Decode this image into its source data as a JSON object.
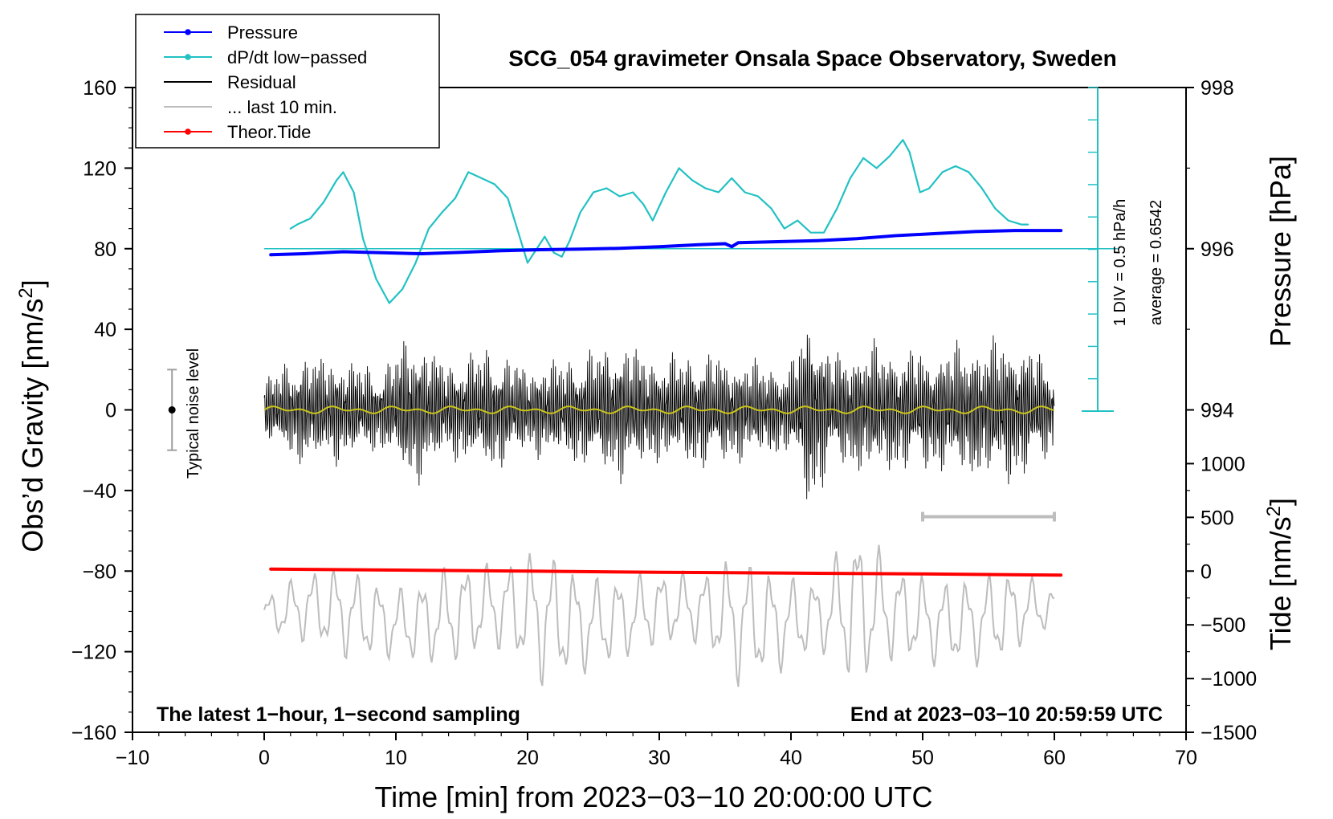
{
  "chart_data": {
    "type": "line",
    "title": "SCG_054 gravimeter Onsala Space Observatory, Sweden",
    "xlabel": "Time [min] from 2023−03−10 20:00:00 UTC",
    "ylabel_left": "Obs’d Gravity [nm/s",
    "ylabel_left_sup": "2",
    "ylabel_left_close": "]",
    "ylabel_right_pressure": "Pressure [hPa]",
    "ylabel_right_tide": "Tide [nm/s",
    "ylabel_right_tide_sup": "2",
    "ylabel_right_tide_close": "]",
    "xlim": [
      -10,
      70
    ],
    "ylim_left": [
      -160,
      160
    ],
    "xticks": [
      "−10",
      "0",
      "10",
      "20",
      "30",
      "40",
      "50",
      "60",
      "70"
    ],
    "xtick_values": [
      -10,
      0,
      10,
      20,
      30,
      40,
      50,
      60,
      70
    ],
    "yticks_left": [
      "160",
      "120",
      "80",
      "40",
      "0",
      "−40",
      "−80",
      "−120",
      "−160"
    ],
    "ytick_values_left": [
      160,
      120,
      80,
      40,
      0,
      -40,
      -80,
      -120,
      -160
    ],
    "pressure_ticks": [
      "998",
      "996",
      "994"
    ],
    "pressure_tick_values": [
      998,
      996,
      994
    ],
    "pressure_axis_map": {
      "hpa_at_80": 996,
      "nms2_per_hpa": 40
    },
    "tide_ticks": [
      "1000",
      "500",
      "0",
      "−500",
      "−1000",
      "−1500"
    ],
    "tide_tick_values": [
      1000,
      500,
      0,
      -500,
      -1000,
      -1500
    ],
    "tide_axis_map": {
      "tide_at_minus80": 0,
      "tide_units_per_nms2": 18.75
    },
    "pressure_scale_text": "1 DIV = 0.5 hPa/h",
    "pressure_average_text": "average = 0.6542",
    "pressure_reference_level": 80,
    "noise_label": "Typical noise level",
    "noise_bar": {
      "x": -7,
      "center": 0,
      "low": -20,
      "high": 20
    },
    "last_window_bar": {
      "x_start": 50,
      "x_end": 60,
      "y": -53
    },
    "bottom_left_note": "The latest 1−hour, 1−second sampling",
    "bottom_right_note": "End at 2023−03−10 20:59:59 UTC",
    "legend": [
      {
        "label": "Pressure",
        "color": "#0000ff",
        "style": "line-dot"
      },
      {
        "label": "dP/dt low−passed",
        "color": "#22c1c3",
        "style": "line-dot"
      },
      {
        "label": "Residual",
        "color": "#000000",
        "style": "line"
      },
      {
        "label": "... last 10 min.",
        "color": "#bdbdbd",
        "style": "line"
      },
      {
        "label": "Theor.Tide",
        "color": "#ff0000",
        "style": "line-dot"
      }
    ],
    "series": [
      {
        "name": "Pressure",
        "color": "#0000ff",
        "x": [
          0.5,
          3,
          6,
          9,
          12,
          15,
          18,
          21,
          24,
          27,
          30,
          33,
          35,
          35.5,
          36,
          39,
          42,
          45,
          48,
          51,
          54,
          57,
          60.5
        ],
        "values": [
          77,
          77.5,
          78.5,
          78,
          77.5,
          78.2,
          79,
          79.5,
          79.8,
          80.2,
          81,
          82,
          82.5,
          81,
          83,
          83.5,
          84,
          85,
          86.5,
          87.5,
          88.5,
          89,
          89
        ]
      },
      {
        "name": "dP/dt low−passed",
        "color": "#22c1c3",
        "x": [
          2,
          2.5,
          3.5,
          4.5,
          5.5,
          6,
          6.8,
          7.5,
          8.5,
          9.5,
          10.5,
          11.5,
          12.5,
          13.5,
          14.5,
          15.5,
          16.5,
          17.5,
          18.5,
          19.3,
          20,
          20.5,
          21.3,
          22,
          22.6,
          23.2,
          24,
          25,
          26,
          27,
          28,
          28.8,
          29.5,
          30.5,
          31.5,
          32.5,
          33.5,
          34.5,
          35.5,
          36.5,
          37.5,
          38.5,
          39.5,
          40.5,
          41.5,
          42.5,
          43.5,
          44.5,
          45.5,
          46.5,
          47.5,
          48.5,
          49,
          49.8,
          50.5,
          51.5,
          52.5,
          53.5,
          54.5,
          55.5,
          56.5,
          57.5,
          58
        ],
        "values": [
          90,
          92,
          95,
          103,
          114,
          118,
          108,
          85,
          65,
          53,
          60,
          73,
          90,
          98,
          105,
          118,
          115,
          112,
          105,
          88,
          73,
          78,
          86,
          78,
          76,
          84,
          98,
          108,
          110,
          106,
          108,
          102,
          94,
          108,
          120,
          114,
          110,
          108,
          115,
          108,
          106,
          100,
          90,
          94,
          88,
          88,
          100,
          115,
          125,
          120,
          126,
          134,
          128,
          108,
          110,
          118,
          121,
          118,
          110,
          100,
          94,
          92,
          92
        ]
      },
      {
        "name": "Theor.Tide",
        "color": "#ff0000",
        "x": [
          0.5,
          10,
          20,
          30,
          40,
          50,
          60.5
        ],
        "values": [
          -79,
          -79.5,
          -80,
          -80.6,
          -81,
          -81.4,
          -82
        ]
      },
      {
        "name": "Residual",
        "color": "#000000",
        "x_range": [
          0,
          60
        ],
        "envelope": [
          {
            "x": 0,
            "amp": 18
          },
          {
            "x": 3,
            "amp": 30
          },
          {
            "x": 6,
            "amp": 28
          },
          {
            "x": 9,
            "amp": 22
          },
          {
            "x": 11,
            "amp": 42
          },
          {
            "x": 14,
            "amp": 26
          },
          {
            "x": 17,
            "amp": 34
          },
          {
            "x": 20,
            "amp": 24
          },
          {
            "x": 24,
            "amp": 30
          },
          {
            "x": 27,
            "amp": 38
          },
          {
            "x": 30,
            "amp": 28
          },
          {
            "x": 33,
            "amp": 32
          },
          {
            "x": 36,
            "amp": 28
          },
          {
            "x": 40,
            "amp": 24
          },
          {
            "x": 41.5,
            "amp": 58
          },
          {
            "x": 43,
            "amp": 30
          },
          {
            "x": 46,
            "amp": 36
          },
          {
            "x": 50,
            "amp": 32
          },
          {
            "x": 53,
            "amp": 36
          },
          {
            "x": 57,
            "amp": 40
          },
          {
            "x": 60,
            "amp": 24
          }
        ]
      },
      {
        "name": "Residual smoothed",
        "color": "#c9c41a",
        "x_range": [
          0,
          60
        ],
        "center": 0,
        "amp": 2
      },
      {
        "name": "... last 10 min.",
        "color": "#bdbdbd",
        "x_range": [
          0,
          60
        ],
        "center": -102,
        "envelope": [
          {
            "x": 0,
            "amp": 10
          },
          {
            "x": 3,
            "amp": 18
          },
          {
            "x": 6,
            "amp": 24
          },
          {
            "x": 10,
            "amp": 18
          },
          {
            "x": 14,
            "amp": 26
          },
          {
            "x": 18,
            "amp": 22
          },
          {
            "x": 21,
            "amp": 36
          },
          {
            "x": 25,
            "amp": 24
          },
          {
            "x": 29,
            "amp": 20
          },
          {
            "x": 33,
            "amp": 18
          },
          {
            "x": 36,
            "amp": 34
          },
          {
            "x": 39,
            "amp": 26
          },
          {
            "x": 42,
            "amp": 18
          },
          {
            "x": 45,
            "amp": 42
          },
          {
            "x": 48,
            "amp": 24
          },
          {
            "x": 52,
            "amp": 22
          },
          {
            "x": 56,
            "amp": 24
          },
          {
            "x": 60,
            "amp": 10
          }
        ]
      }
    ]
  }
}
